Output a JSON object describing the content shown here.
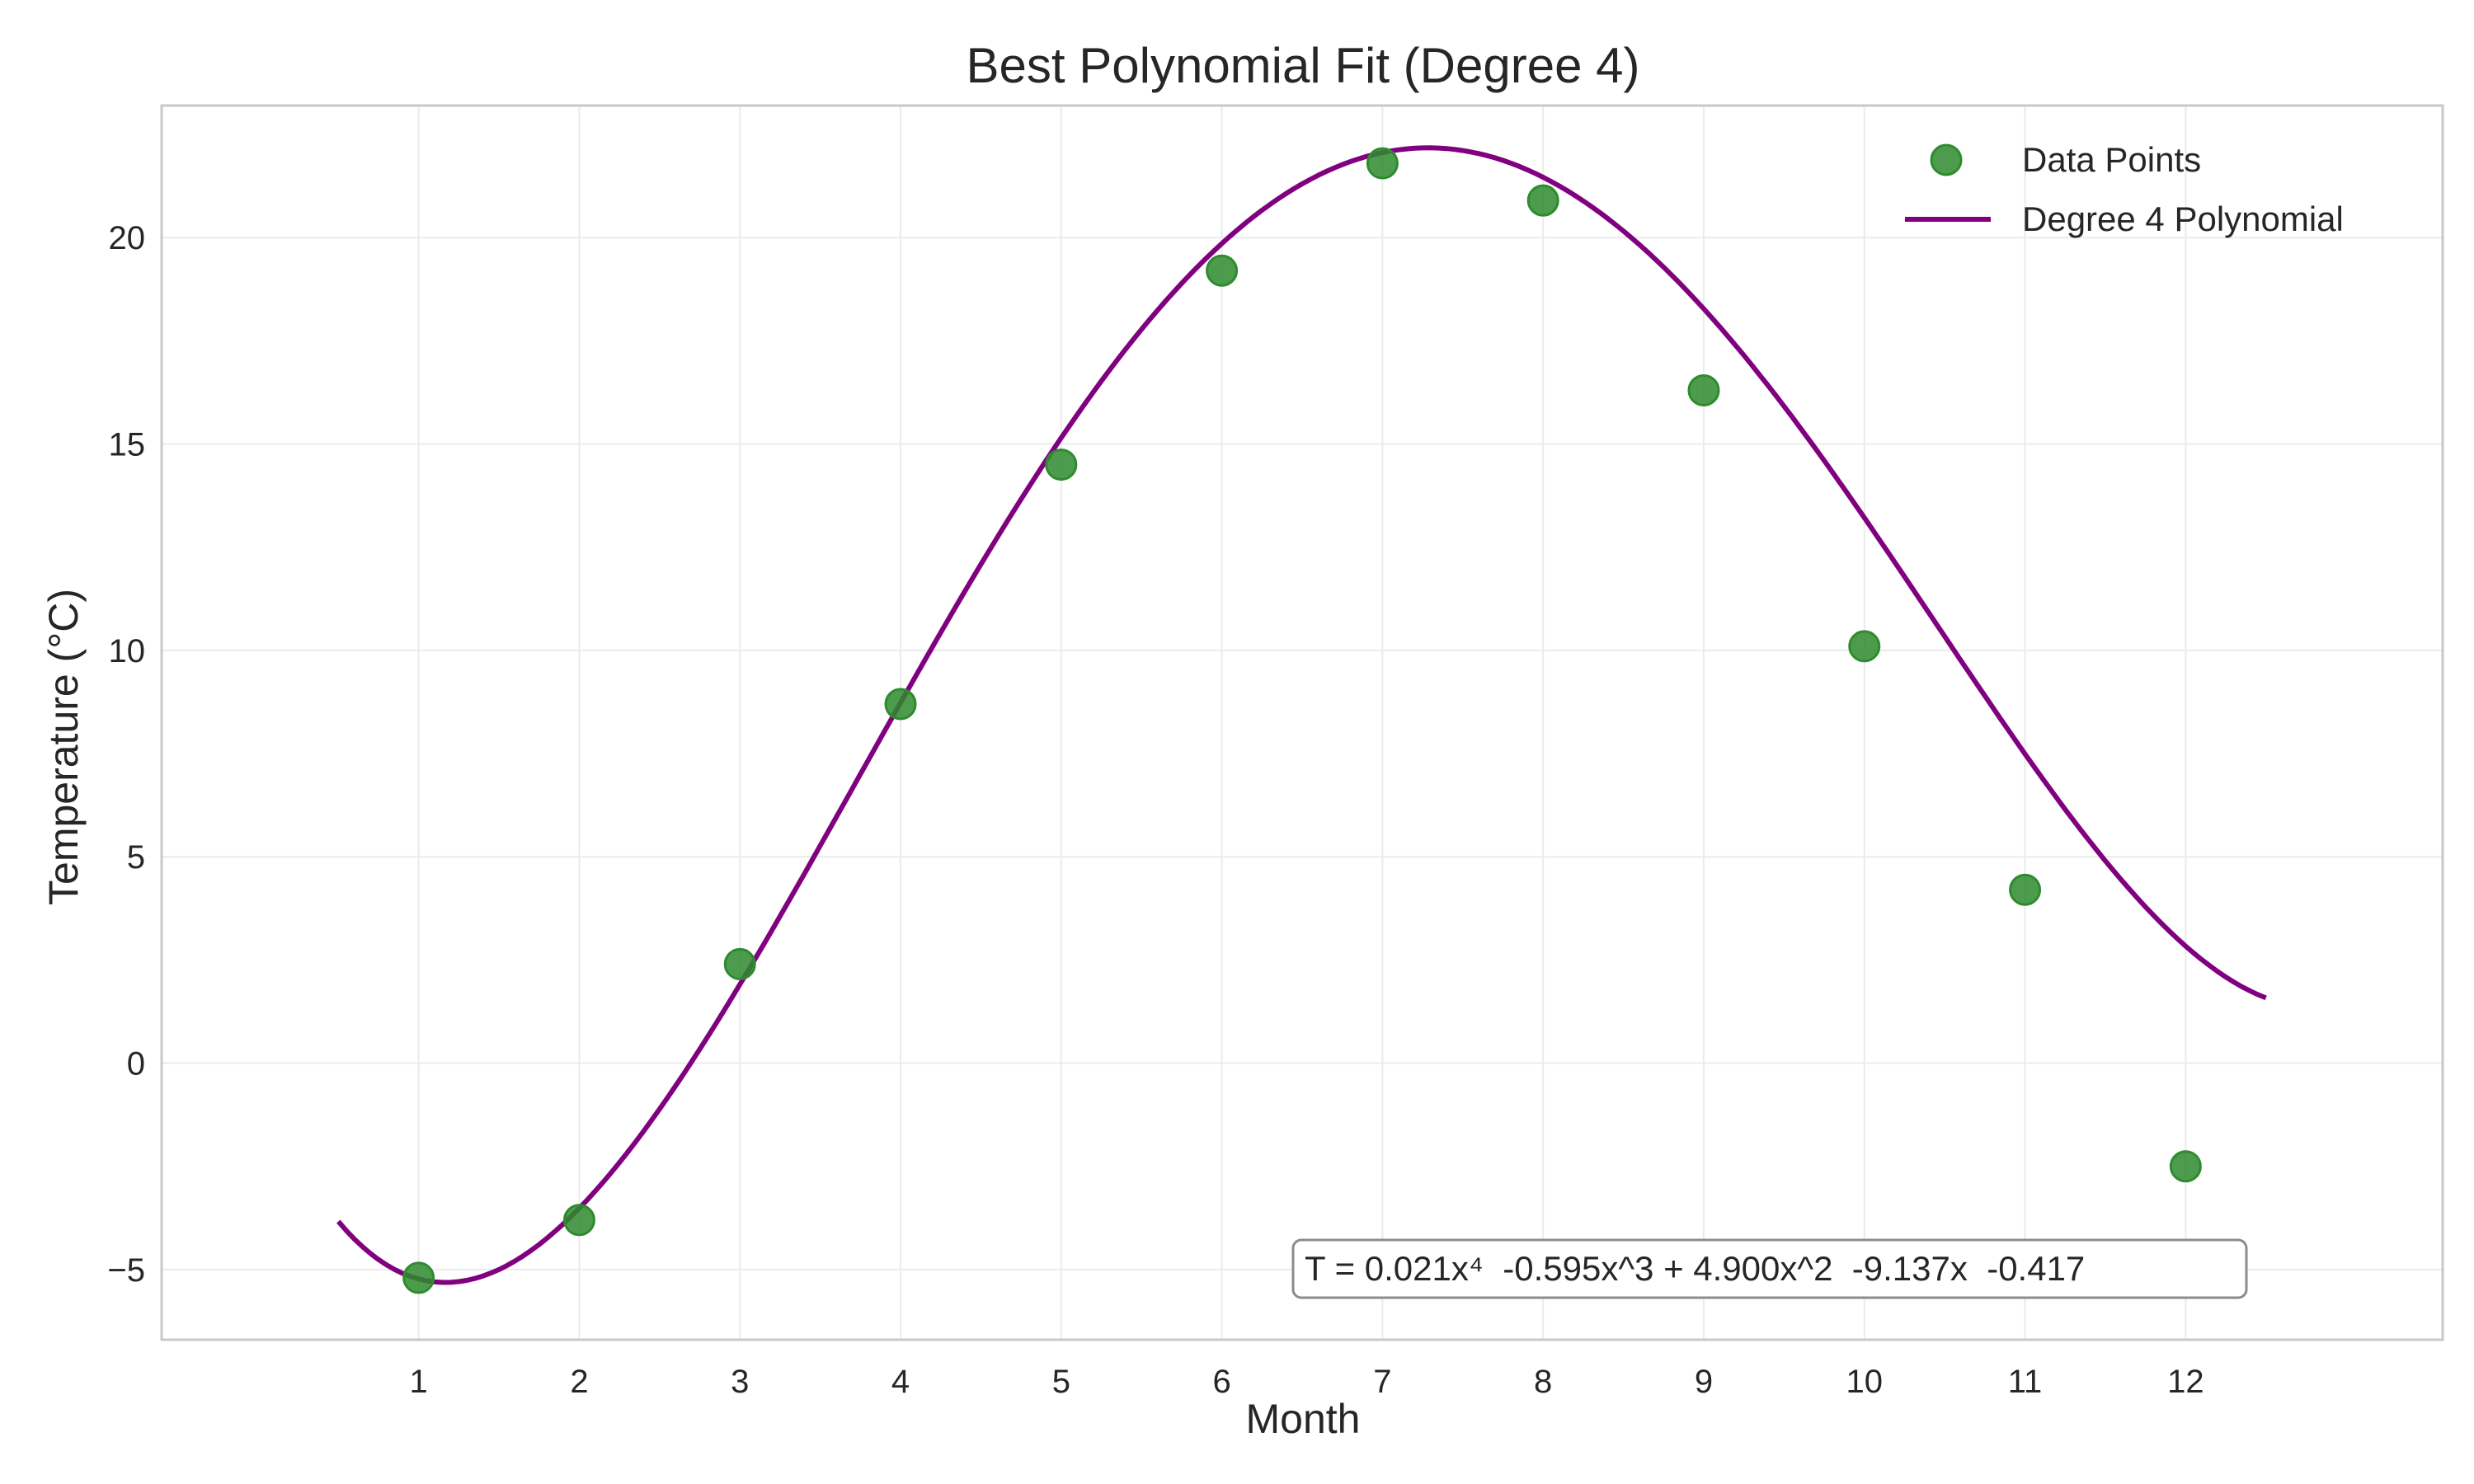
{
  "chart_data": {
    "type": "scatter",
    "title": "Best Polynomial Fit (Degree 4)",
    "xlabel": "Month",
    "ylabel": "Temperature (°C)",
    "xlim": [
      -0.6,
      13.6
    ],
    "ylim": [
      -6.7,
      23.2
    ],
    "xticks": [
      1,
      2,
      3,
      4,
      5,
      6,
      7,
      8,
      9,
      10,
      11,
      12
    ],
    "yticks": [
      -5,
      0,
      5,
      10,
      15,
      20
    ],
    "ytick_labels": [
      "−5",
      "0",
      "5",
      "10",
      "15",
      "20"
    ],
    "grid": true,
    "legend_position": "top-right",
    "series": [
      {
        "name": "Data Points",
        "kind": "scatter",
        "color": "#2e8b2e",
        "x": [
          1,
          2,
          3,
          4,
          5,
          6,
          7,
          8,
          9,
          10,
          11,
          12
        ],
        "y": [
          -5.2,
          -3.8,
          2.4,
          8.7,
          14.5,
          19.2,
          21.8,
          20.9,
          16.3,
          10.1,
          4.2,
          -2.5
        ]
      },
      {
        "name": "Degree 4 Polynomial",
        "kind": "line",
        "color": "#800080",
        "coefficients": [
          0.021,
          -0.595,
          4.9,
          -9.137,
          -0.417
        ],
        "x_range": [
          0.5,
          12.5
        ]
      }
    ],
    "annotation": "T = 0.021x⁴  -0.595x^3 + 4.900x^2  -9.137x  -0.417"
  }
}
